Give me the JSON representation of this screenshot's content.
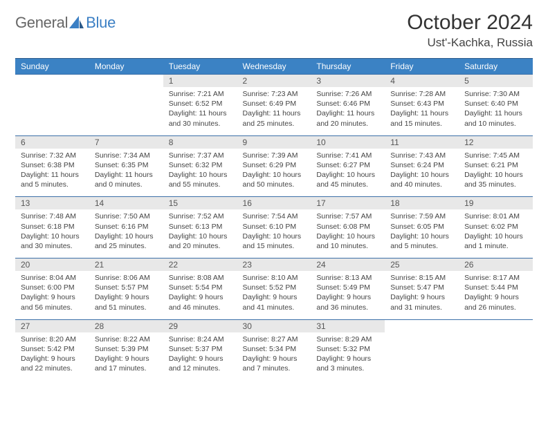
{
  "brand": {
    "part1": "General",
    "part2": "Blue"
  },
  "title": "October 2024",
  "location": "Ust'-Kachka, Russia",
  "colors": {
    "header_bg": "#3b82c4",
    "header_text": "#ffffff",
    "daynum_bg": "#e8e8e8",
    "daynum_text": "#555555",
    "rule": "#3b6fa8",
    "body_text": "#444444",
    "title_text": "#333333",
    "brand_gray": "#666666",
    "brand_blue": "#3b7fc4"
  },
  "day_names": [
    "Sunday",
    "Monday",
    "Tuesday",
    "Wednesday",
    "Thursday",
    "Friday",
    "Saturday"
  ],
  "weeks": [
    [
      {
        "num": "",
        "sunrise": "",
        "sunset": "",
        "daylight": ""
      },
      {
        "num": "",
        "sunrise": "",
        "sunset": "",
        "daylight": ""
      },
      {
        "num": "1",
        "sunrise": "Sunrise: 7:21 AM",
        "sunset": "Sunset: 6:52 PM",
        "daylight": "Daylight: 11 hours and 30 minutes."
      },
      {
        "num": "2",
        "sunrise": "Sunrise: 7:23 AM",
        "sunset": "Sunset: 6:49 PM",
        "daylight": "Daylight: 11 hours and 25 minutes."
      },
      {
        "num": "3",
        "sunrise": "Sunrise: 7:26 AM",
        "sunset": "Sunset: 6:46 PM",
        "daylight": "Daylight: 11 hours and 20 minutes."
      },
      {
        "num": "4",
        "sunrise": "Sunrise: 7:28 AM",
        "sunset": "Sunset: 6:43 PM",
        "daylight": "Daylight: 11 hours and 15 minutes."
      },
      {
        "num": "5",
        "sunrise": "Sunrise: 7:30 AM",
        "sunset": "Sunset: 6:40 PM",
        "daylight": "Daylight: 11 hours and 10 minutes."
      }
    ],
    [
      {
        "num": "6",
        "sunrise": "Sunrise: 7:32 AM",
        "sunset": "Sunset: 6:38 PM",
        "daylight": "Daylight: 11 hours and 5 minutes."
      },
      {
        "num": "7",
        "sunrise": "Sunrise: 7:34 AM",
        "sunset": "Sunset: 6:35 PM",
        "daylight": "Daylight: 11 hours and 0 minutes."
      },
      {
        "num": "8",
        "sunrise": "Sunrise: 7:37 AM",
        "sunset": "Sunset: 6:32 PM",
        "daylight": "Daylight: 10 hours and 55 minutes."
      },
      {
        "num": "9",
        "sunrise": "Sunrise: 7:39 AM",
        "sunset": "Sunset: 6:29 PM",
        "daylight": "Daylight: 10 hours and 50 minutes."
      },
      {
        "num": "10",
        "sunrise": "Sunrise: 7:41 AM",
        "sunset": "Sunset: 6:27 PM",
        "daylight": "Daylight: 10 hours and 45 minutes."
      },
      {
        "num": "11",
        "sunrise": "Sunrise: 7:43 AM",
        "sunset": "Sunset: 6:24 PM",
        "daylight": "Daylight: 10 hours and 40 minutes."
      },
      {
        "num": "12",
        "sunrise": "Sunrise: 7:45 AM",
        "sunset": "Sunset: 6:21 PM",
        "daylight": "Daylight: 10 hours and 35 minutes."
      }
    ],
    [
      {
        "num": "13",
        "sunrise": "Sunrise: 7:48 AM",
        "sunset": "Sunset: 6:18 PM",
        "daylight": "Daylight: 10 hours and 30 minutes."
      },
      {
        "num": "14",
        "sunrise": "Sunrise: 7:50 AM",
        "sunset": "Sunset: 6:16 PM",
        "daylight": "Daylight: 10 hours and 25 minutes."
      },
      {
        "num": "15",
        "sunrise": "Sunrise: 7:52 AM",
        "sunset": "Sunset: 6:13 PM",
        "daylight": "Daylight: 10 hours and 20 minutes."
      },
      {
        "num": "16",
        "sunrise": "Sunrise: 7:54 AM",
        "sunset": "Sunset: 6:10 PM",
        "daylight": "Daylight: 10 hours and 15 minutes."
      },
      {
        "num": "17",
        "sunrise": "Sunrise: 7:57 AM",
        "sunset": "Sunset: 6:08 PM",
        "daylight": "Daylight: 10 hours and 10 minutes."
      },
      {
        "num": "18",
        "sunrise": "Sunrise: 7:59 AM",
        "sunset": "Sunset: 6:05 PM",
        "daylight": "Daylight: 10 hours and 5 minutes."
      },
      {
        "num": "19",
        "sunrise": "Sunrise: 8:01 AM",
        "sunset": "Sunset: 6:02 PM",
        "daylight": "Daylight: 10 hours and 1 minute."
      }
    ],
    [
      {
        "num": "20",
        "sunrise": "Sunrise: 8:04 AM",
        "sunset": "Sunset: 6:00 PM",
        "daylight": "Daylight: 9 hours and 56 minutes."
      },
      {
        "num": "21",
        "sunrise": "Sunrise: 8:06 AM",
        "sunset": "Sunset: 5:57 PM",
        "daylight": "Daylight: 9 hours and 51 minutes."
      },
      {
        "num": "22",
        "sunrise": "Sunrise: 8:08 AM",
        "sunset": "Sunset: 5:54 PM",
        "daylight": "Daylight: 9 hours and 46 minutes."
      },
      {
        "num": "23",
        "sunrise": "Sunrise: 8:10 AM",
        "sunset": "Sunset: 5:52 PM",
        "daylight": "Daylight: 9 hours and 41 minutes."
      },
      {
        "num": "24",
        "sunrise": "Sunrise: 8:13 AM",
        "sunset": "Sunset: 5:49 PM",
        "daylight": "Daylight: 9 hours and 36 minutes."
      },
      {
        "num": "25",
        "sunrise": "Sunrise: 8:15 AM",
        "sunset": "Sunset: 5:47 PM",
        "daylight": "Daylight: 9 hours and 31 minutes."
      },
      {
        "num": "26",
        "sunrise": "Sunrise: 8:17 AM",
        "sunset": "Sunset: 5:44 PM",
        "daylight": "Daylight: 9 hours and 26 minutes."
      }
    ],
    [
      {
        "num": "27",
        "sunrise": "Sunrise: 8:20 AM",
        "sunset": "Sunset: 5:42 PM",
        "daylight": "Daylight: 9 hours and 22 minutes."
      },
      {
        "num": "28",
        "sunrise": "Sunrise: 8:22 AM",
        "sunset": "Sunset: 5:39 PM",
        "daylight": "Daylight: 9 hours and 17 minutes."
      },
      {
        "num": "29",
        "sunrise": "Sunrise: 8:24 AM",
        "sunset": "Sunset: 5:37 PM",
        "daylight": "Daylight: 9 hours and 12 minutes."
      },
      {
        "num": "30",
        "sunrise": "Sunrise: 8:27 AM",
        "sunset": "Sunset: 5:34 PM",
        "daylight": "Daylight: 9 hours and 7 minutes."
      },
      {
        "num": "31",
        "sunrise": "Sunrise: 8:29 AM",
        "sunset": "Sunset: 5:32 PM",
        "daylight": "Daylight: 9 hours and 3 minutes."
      },
      {
        "num": "",
        "sunrise": "",
        "sunset": "",
        "daylight": ""
      },
      {
        "num": "",
        "sunrise": "",
        "sunset": "",
        "daylight": ""
      }
    ]
  ]
}
